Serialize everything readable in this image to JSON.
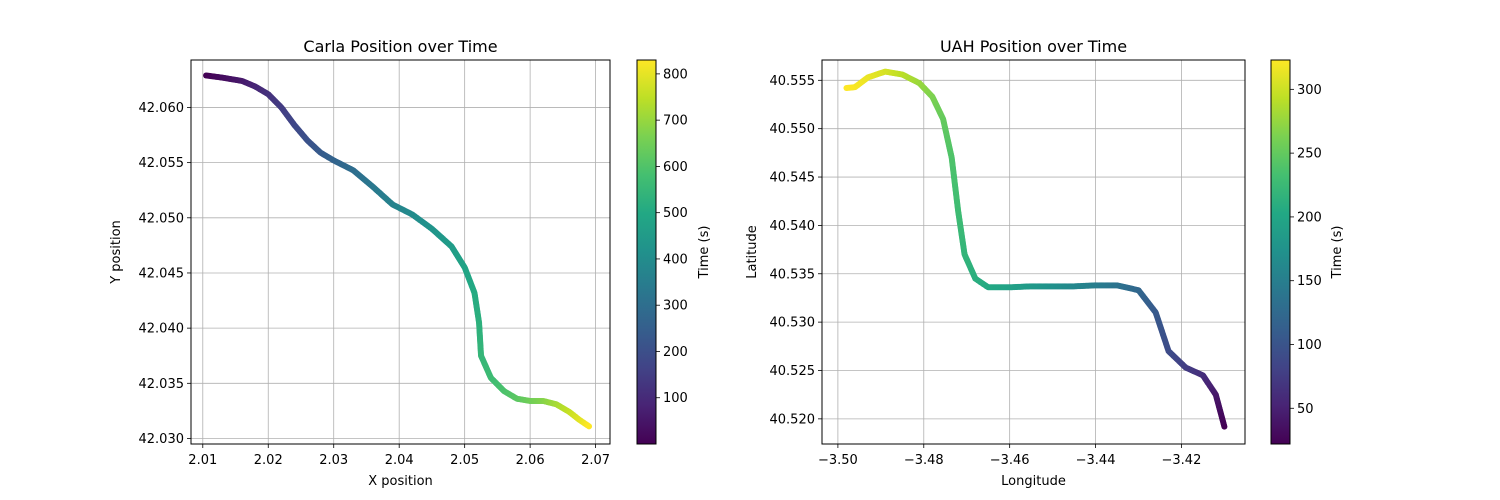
{
  "chart_data": [
    {
      "type": "scatter",
      "title": "Carla Position over Time",
      "xlabel": "X position",
      "ylabel": "Y position",
      "xlim": [
        2.0082,
        2.0722
      ],
      "ylim": [
        42.0295,
        42.0643
      ],
      "xticks": [
        "2.01",
        "2.02",
        "2.03",
        "2.04",
        "2.05",
        "2.06",
        "2.07"
      ],
      "yticks": [
        "42.030",
        "42.035",
        "42.040",
        "42.045",
        "42.050",
        "42.055",
        "42.060"
      ],
      "grid": true,
      "colormap": "viridis",
      "colorbar": {
        "label": "Time (s)",
        "range": [
          0,
          830
        ],
        "ticks": [
          "100",
          "200",
          "300",
          "400",
          "500",
          "600",
          "700",
          "800"
        ]
      },
      "points": [
        {
          "x": 2.0105,
          "y": 42.0629,
          "t": 0
        },
        {
          "x": 2.013,
          "y": 42.0627,
          "t": 25
        },
        {
          "x": 2.016,
          "y": 42.0624,
          "t": 55
        },
        {
          "x": 2.018,
          "y": 42.0619,
          "t": 85
        },
        {
          "x": 2.02,
          "y": 42.0612,
          "t": 115
        },
        {
          "x": 2.022,
          "y": 42.06,
          "t": 145
        },
        {
          "x": 2.024,
          "y": 42.0584,
          "t": 175
        },
        {
          "x": 2.026,
          "y": 42.057,
          "t": 205
        },
        {
          "x": 2.028,
          "y": 42.0559,
          "t": 235
        },
        {
          "x": 2.03,
          "y": 42.0552,
          "t": 262
        },
        {
          "x": 2.033,
          "y": 42.0543,
          "t": 295
        },
        {
          "x": 2.036,
          "y": 42.0528,
          "t": 330
        },
        {
          "x": 2.039,
          "y": 42.0512,
          "t": 365
        },
        {
          "x": 2.042,
          "y": 42.0503,
          "t": 395
        },
        {
          "x": 2.045,
          "y": 42.049,
          "t": 425
        },
        {
          "x": 2.048,
          "y": 42.0474,
          "t": 455
        },
        {
          "x": 2.05,
          "y": 42.0455,
          "t": 480
        },
        {
          "x": 2.0515,
          "y": 42.0432,
          "t": 505
        },
        {
          "x": 2.0522,
          "y": 42.0405,
          "t": 525
        },
        {
          "x": 2.0525,
          "y": 42.0375,
          "t": 545
        },
        {
          "x": 2.054,
          "y": 42.0355,
          "t": 565
        },
        {
          "x": 2.056,
          "y": 42.0343,
          "t": 590
        },
        {
          "x": 2.058,
          "y": 42.0336,
          "t": 615
        },
        {
          "x": 2.06,
          "y": 42.0334,
          "t": 645
        },
        {
          "x": 2.062,
          "y": 42.0334,
          "t": 675
        },
        {
          "x": 2.064,
          "y": 42.0331,
          "t": 715
        },
        {
          "x": 2.066,
          "y": 42.0324,
          "t": 755
        },
        {
          "x": 2.0675,
          "y": 42.0317,
          "t": 790
        },
        {
          "x": 2.069,
          "y": 42.0311,
          "t": 830
        }
      ]
    },
    {
      "type": "scatter",
      "title": "UAH Position over Time",
      "xlabel": "Longitude",
      "ylabel": "Latitude",
      "xlim": [
        -3.5037,
        -3.4052
      ],
      "ylim": [
        40.5174,
        40.5571
      ],
      "xticks": [
        "−3.50",
        "−3.48",
        "−3.46",
        "−3.44",
        "−3.42"
      ],
      "yticks": [
        "40.520",
        "40.525",
        "40.530",
        "40.535",
        "40.540",
        "40.545",
        "40.550",
        "40.555"
      ],
      "grid": true,
      "colormap": "viridis",
      "colorbar": {
        "label": "Time (s)",
        "range": [
          22,
          323
        ],
        "ticks": [
          "50",
          "100",
          "150",
          "200",
          "250",
          "300"
        ]
      },
      "points": [
        {
          "x": -3.41,
          "y": 40.5192,
          "t": 22
        },
        {
          "x": -3.412,
          "y": 40.5225,
          "t": 40
        },
        {
          "x": -3.415,
          "y": 40.5245,
          "t": 60
        },
        {
          "x": -3.419,
          "y": 40.5253,
          "t": 75
        },
        {
          "x": -3.423,
          "y": 40.527,
          "t": 90
        },
        {
          "x": -3.426,
          "y": 40.531,
          "t": 105
        },
        {
          "x": -3.43,
          "y": 40.5333,
          "t": 120
        },
        {
          "x": -3.435,
          "y": 40.5338,
          "t": 135
        },
        {
          "x": -3.44,
          "y": 40.5338,
          "t": 148
        },
        {
          "x": -3.445,
          "y": 40.5337,
          "t": 160
        },
        {
          "x": -3.45,
          "y": 40.5337,
          "t": 172
        },
        {
          "x": -3.455,
          "y": 40.5337,
          "t": 183
        },
        {
          "x": -3.46,
          "y": 40.5336,
          "t": 193
        },
        {
          "x": -3.465,
          "y": 40.5336,
          "t": 203
        },
        {
          "x": -3.468,
          "y": 40.5345,
          "t": 210
        },
        {
          "x": -3.4705,
          "y": 40.537,
          "t": 218
        },
        {
          "x": -3.472,
          "y": 40.5415,
          "t": 228
        },
        {
          "x": -3.4735,
          "y": 40.547,
          "t": 238
        },
        {
          "x": -3.4755,
          "y": 40.551,
          "t": 250
        },
        {
          "x": -3.478,
          "y": 40.5533,
          "t": 262
        },
        {
          "x": -3.481,
          "y": 40.5547,
          "t": 275
        },
        {
          "x": -3.485,
          "y": 40.5556,
          "t": 290
        },
        {
          "x": -3.489,
          "y": 40.5559,
          "t": 303
        },
        {
          "x": -3.493,
          "y": 40.5553,
          "t": 313
        },
        {
          "x": -3.496,
          "y": 40.5543,
          "t": 320
        },
        {
          "x": -3.498,
          "y": 40.5542,
          "t": 323
        }
      ]
    }
  ]
}
